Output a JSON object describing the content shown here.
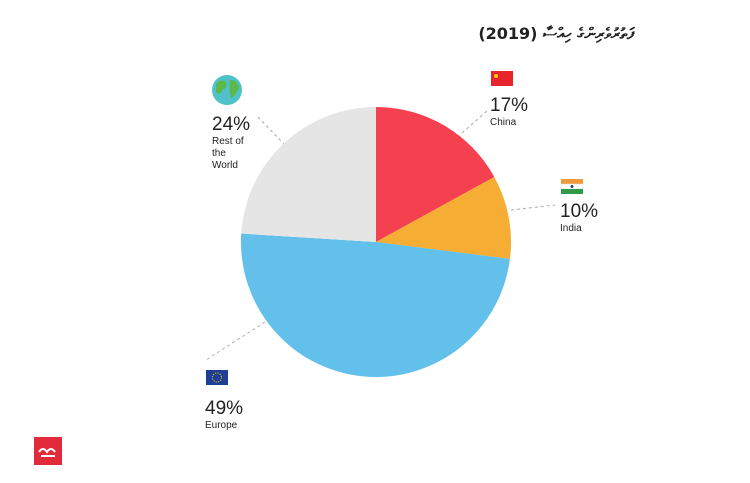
{
  "chart_data": {
    "type": "pie",
    "title": "ފަތުރުވެރިންގެ ހިއްސާ (2019)",
    "categories": [
      "China",
      "India",
      "Europe",
      "Rest of the World"
    ],
    "values": [
      17,
      10,
      49,
      24
    ],
    "value_labels": [
      "17%",
      "10%",
      "49%",
      "24%"
    ],
    "colors": [
      "#f5404f",
      "#f5ad33",
      "#62c0ea",
      "#e5e5e5"
    ]
  }
}
